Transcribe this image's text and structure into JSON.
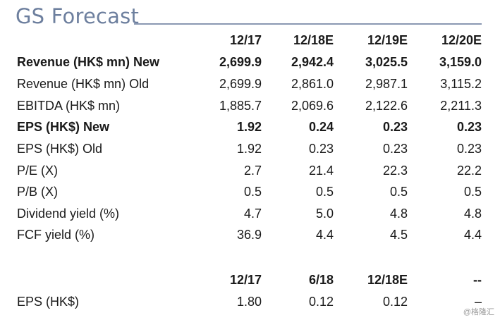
{
  "title": "GS Forecast",
  "header1": [
    "12/17",
    "12/18E",
    "12/19E",
    "12/20E"
  ],
  "rows": [
    {
      "label": "Revenue (HK$ mn) New",
      "values": [
        "2,699.9",
        "2,942.4",
        "3,025.5",
        "3,159.0"
      ],
      "bold": true
    },
    {
      "label": "Revenue (HK$ mn) Old",
      "values": [
        "2,699.9",
        "2,861.0",
        "2,987.1",
        "3,115.2"
      ],
      "bold": false
    },
    {
      "label": "EBITDA (HK$ mn)",
      "values": [
        "1,885.7",
        "2,069.6",
        "2,122.6",
        "2,211.3"
      ],
      "bold": false
    },
    {
      "label": "EPS (HK$) New",
      "values": [
        "1.92",
        "0.24",
        "0.23",
        "0.23"
      ],
      "bold": true
    },
    {
      "label": "EPS (HK$) Old",
      "values": [
        "1.92",
        "0.23",
        "0.23",
        "0.23"
      ],
      "bold": false
    },
    {
      "label": "P/E (X)",
      "values": [
        "2.7",
        "21.4",
        "22.3",
        "22.2"
      ],
      "bold": false
    },
    {
      "label": "P/B (X)",
      "values": [
        "0.5",
        "0.5",
        "0.5",
        "0.5"
      ],
      "bold": false
    },
    {
      "label": "Dividend yield (%)",
      "values": [
        "4.7",
        "5.0",
        "4.8",
        "4.8"
      ],
      "bold": false
    },
    {
      "label": "FCF yield (%)",
      "values": [
        "36.9",
        "4.4",
        "4.5",
        "4.4"
      ],
      "bold": false
    }
  ],
  "header2": [
    "12/17",
    "6/18",
    "12/18E",
    "--"
  ],
  "eps_row": {
    "label": "EPS (HK$)",
    "values": [
      "1.80",
      "0.12",
      "0.12",
      "–"
    ]
  },
  "watermark": "@格隆汇"
}
